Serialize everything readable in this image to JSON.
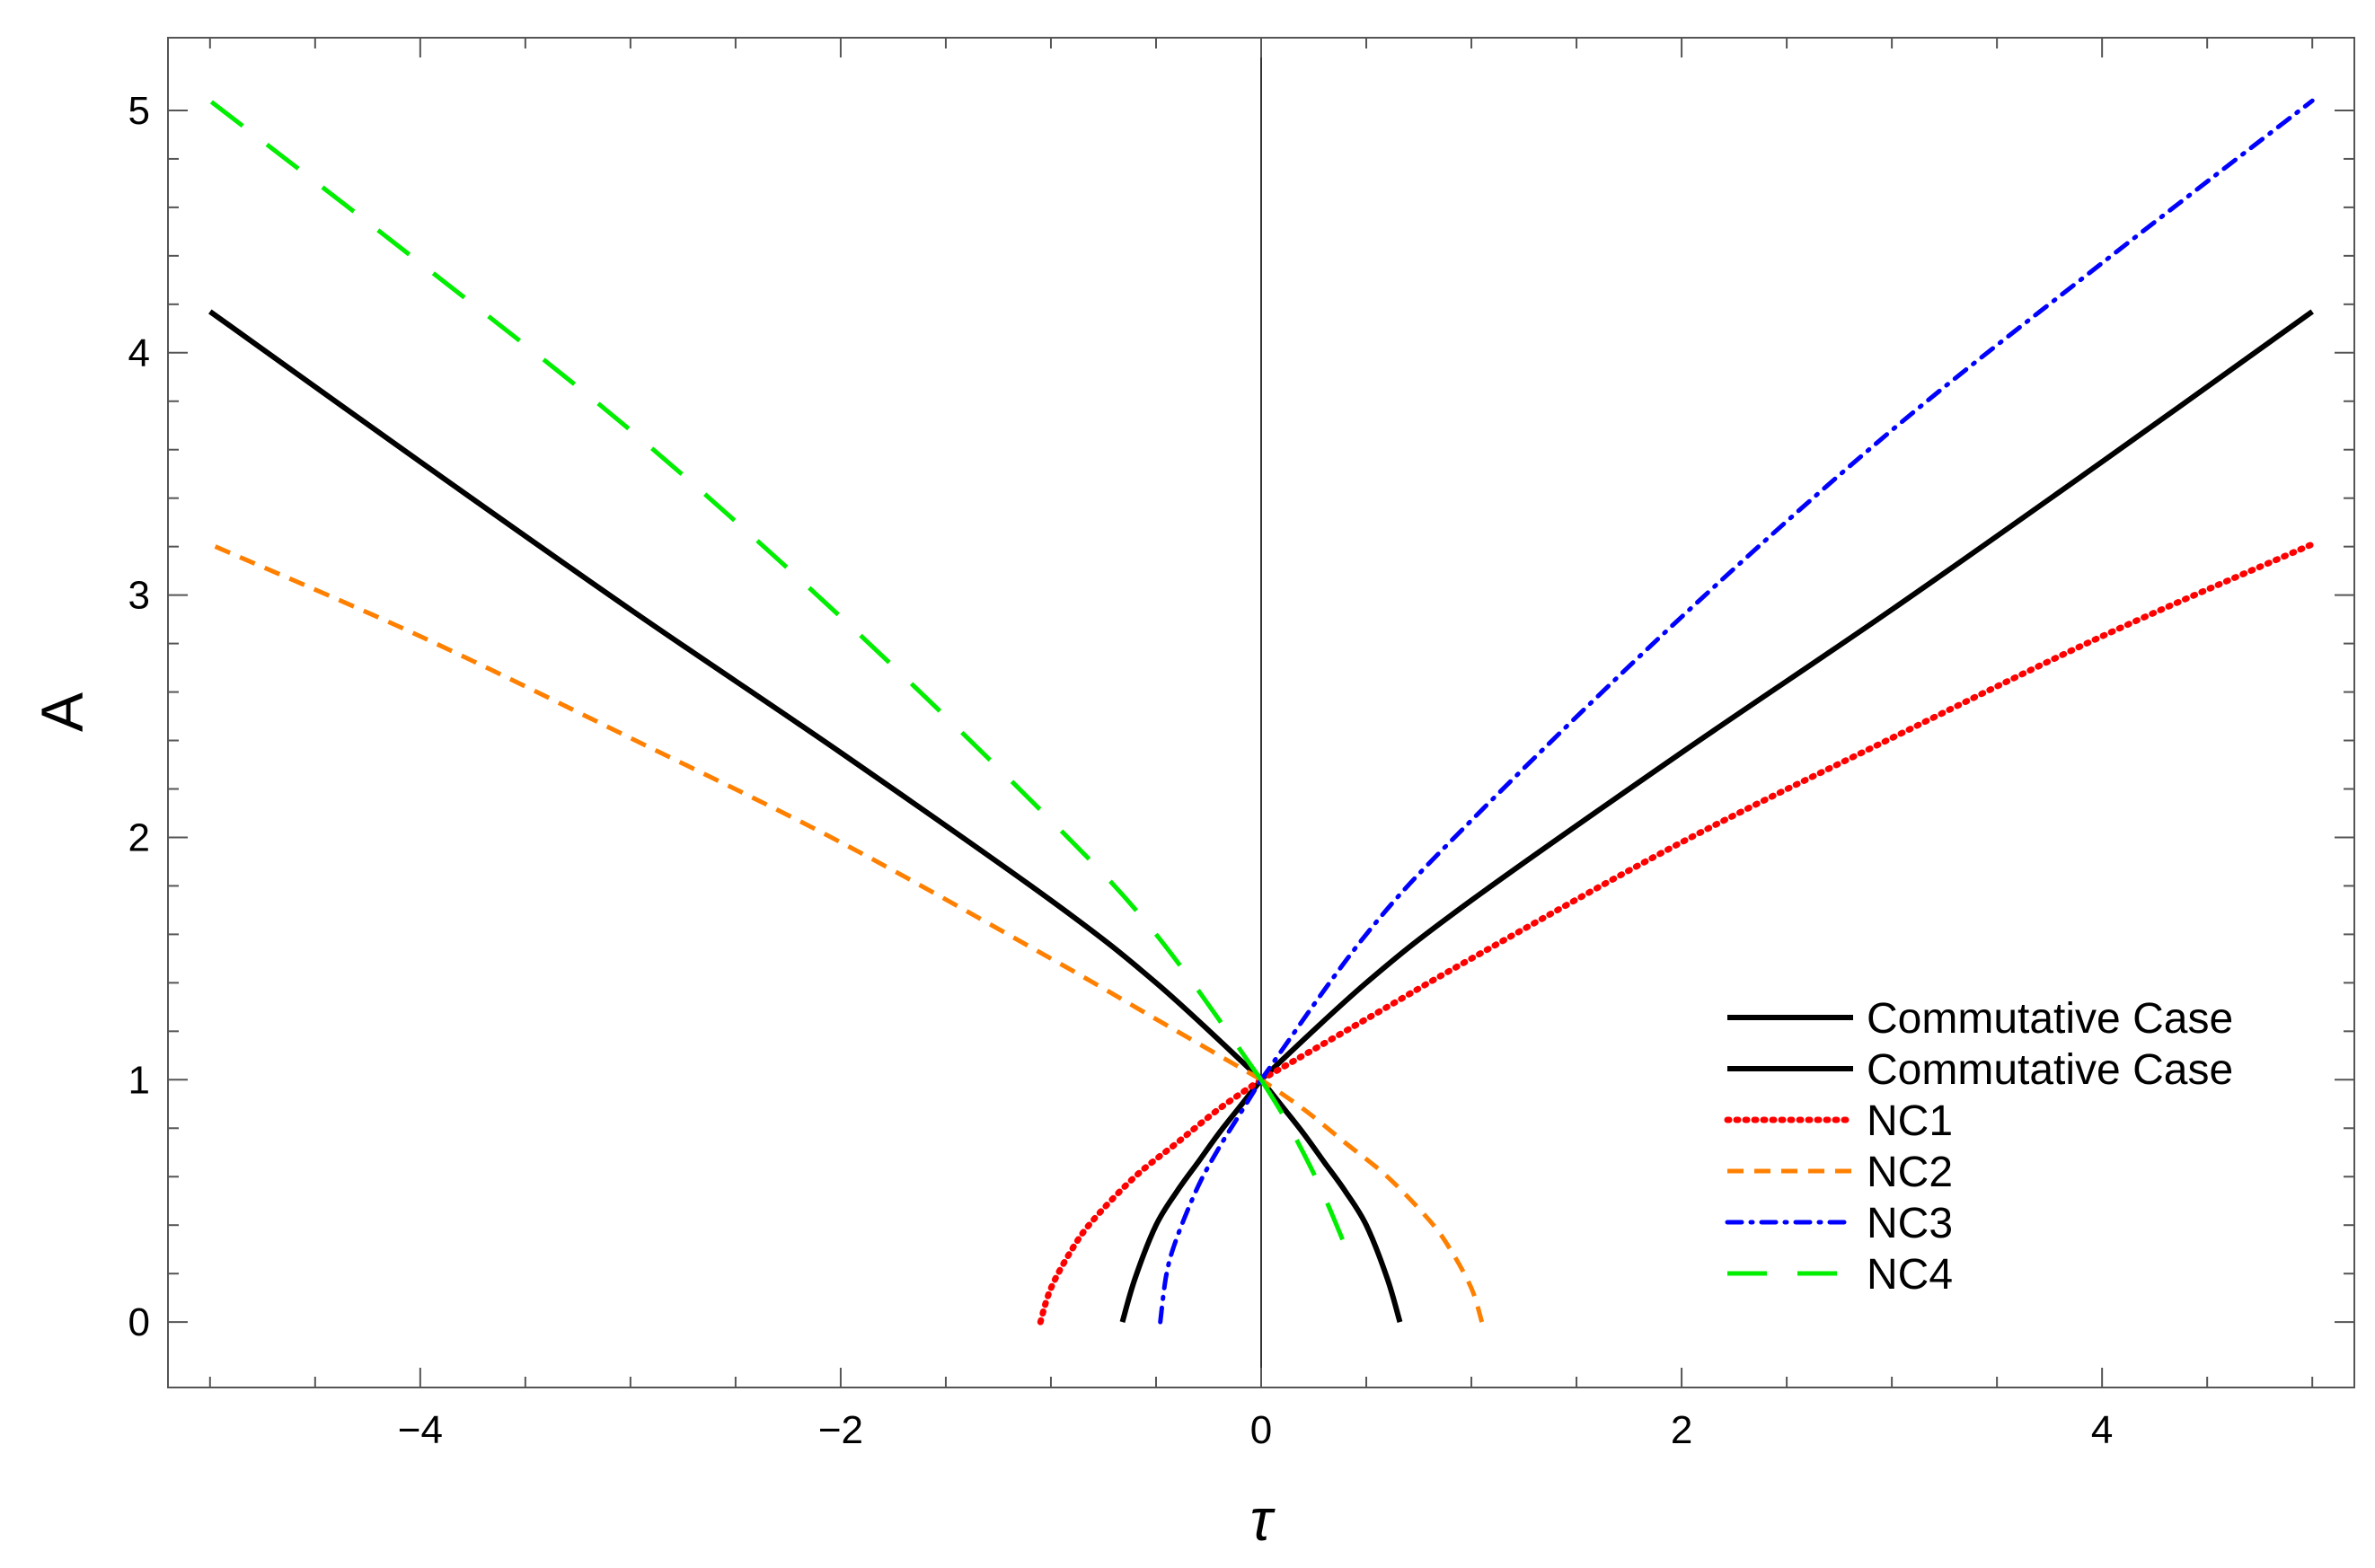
{
  "chart_data": {
    "type": "line",
    "title": "",
    "xlabel": "τ",
    "ylabel": "A",
    "xlim": [
      -5.2,
      5.2
    ],
    "ylim": [
      -0.27,
      5.3
    ],
    "grid": false,
    "legend_position": "bottom-right",
    "x_ticks": [
      -4,
      -2,
      0,
      2,
      4
    ],
    "x_tick_labels": [
      "−4",
      "−2",
      "0",
      "2",
      "4"
    ],
    "y_ticks": [
      0,
      1,
      2,
      3,
      4,
      5
    ],
    "y_tick_labels": [
      "0",
      "1",
      "2",
      "3",
      "4",
      "5"
    ],
    "series": [
      {
        "name": "Commutative Case",
        "color": "#000000",
        "dash": "solid",
        "points": [
          [
            0,
            1
          ],
          [
            0.5,
            1.4
          ],
          [
            1,
            1.74
          ],
          [
            2,
            2.35
          ],
          [
            3,
            2.94
          ],
          [
            4,
            3.55
          ],
          [
            5,
            4.17
          ]
        ]
      },
      {
        "name": "Commutative Case",
        "color": "#000000",
        "dash": "solid",
        "points": [
          [
            0,
            1
          ],
          [
            -0.5,
            1.4
          ],
          [
            -1,
            1.74
          ],
          [
            -2,
            2.35
          ],
          [
            -3,
            2.94
          ],
          [
            -4,
            3.55
          ],
          [
            -5,
            4.17
          ]
        ]
      },
      {
        "name": "",
        "color": "#000000",
        "dash": "solid",
        "points": [
          [
            -0.66,
            0
          ],
          [
            -0.6,
            0.18
          ],
          [
            -0.5,
            0.4
          ],
          [
            -0.4,
            0.54
          ],
          [
            -0.3,
            0.66
          ],
          [
            -0.2,
            0.78
          ],
          [
            -0.1,
            0.89
          ],
          [
            0,
            1
          ]
        ]
      },
      {
        "name": "",
        "color": "#000000",
        "dash": "solid",
        "points": [
          [
            0.66,
            0
          ],
          [
            0.6,
            0.18
          ],
          [
            0.5,
            0.4
          ],
          [
            0.4,
            0.54
          ],
          [
            0.3,
            0.66
          ],
          [
            0.2,
            0.78
          ],
          [
            0.1,
            0.89
          ],
          [
            0,
            1
          ]
        ]
      },
      {
        "name": "NC1",
        "color": "#ff0000",
        "dash": "dotted",
        "points": [
          [
            0,
            1
          ],
          [
            0.5,
            1.25
          ],
          [
            1,
            1.5
          ],
          [
            2,
            1.98
          ],
          [
            3,
            2.41
          ],
          [
            4,
            2.83
          ],
          [
            5,
            3.21
          ]
        ]
      },
      {
        "name": "",
        "color": "#ff0000",
        "dash": "dotted",
        "points": [
          [
            -1.05,
            0
          ],
          [
            -1.0,
            0.14
          ],
          [
            -0.9,
            0.3
          ],
          [
            -0.8,
            0.42
          ],
          [
            -0.6,
            0.6
          ],
          [
            -0.4,
            0.74
          ],
          [
            -0.2,
            0.88
          ],
          [
            0,
            1
          ]
        ]
      },
      {
        "name": "NC2",
        "color": "#ff8000",
        "dash": "dashed",
        "points": [
          [
            0,
            1
          ],
          [
            -0.5,
            1.25
          ],
          [
            -1,
            1.5
          ],
          [
            -2,
            1.98
          ],
          [
            -3,
            2.41
          ],
          [
            -4,
            2.83
          ],
          [
            -5,
            3.21
          ]
        ]
      },
      {
        "name": "",
        "color": "#ff8000",
        "dash": "dashed",
        "points": [
          [
            1.05,
            0
          ],
          [
            1.0,
            0.14
          ],
          [
            0.9,
            0.3
          ],
          [
            0.8,
            0.42
          ],
          [
            0.6,
            0.6
          ],
          [
            0.4,
            0.74
          ],
          [
            0.2,
            0.88
          ],
          [
            0,
            1
          ]
        ]
      },
      {
        "name": "NC3",
        "color": "#0000ff",
        "dash": "dashdot",
        "points": [
          [
            0,
            1
          ],
          [
            0.5,
            1.6
          ],
          [
            1,
            2.07
          ],
          [
            2,
            2.91
          ],
          [
            3,
            3.68
          ],
          [
            4,
            4.37
          ],
          [
            5,
            5.04
          ]
        ]
      },
      {
        "name": "",
        "color": "#0000ff",
        "dash": "dashdot",
        "points": [
          [
            -0.48,
            0
          ],
          [
            -0.45,
            0.2
          ],
          [
            -0.4,
            0.35
          ],
          [
            -0.3,
            0.56
          ],
          [
            -0.2,
            0.72
          ],
          [
            -0.1,
            0.86
          ],
          [
            0,
            1
          ]
        ]
      },
      {
        "name": "NC4",
        "color": "#00ee00",
        "dash": "longdash",
        "points": [
          [
            0,
            1
          ],
          [
            -0.5,
            1.6
          ],
          [
            -1,
            2.07
          ],
          [
            -2,
            2.91
          ],
          [
            -3,
            3.68
          ],
          [
            -4,
            4.37
          ],
          [
            -5,
            5.04
          ]
        ]
      },
      {
        "name": "",
        "color": "#00ee00",
        "dash": "longdash",
        "points": [
          [
            0,
            1
          ],
          [
            0.1,
            0.86
          ],
          [
            0.2,
            0.7
          ],
          [
            0.3,
            0.52
          ],
          [
            0.43,
            0.25
          ]
        ]
      }
    ],
    "legend": [
      {
        "label": "Commutative Case",
        "color": "#000000",
        "dash": "solid"
      },
      {
        "label": "Commutative Case",
        "color": "#000000",
        "dash": "solid"
      },
      {
        "label": "NC1",
        "color": "#ff0000",
        "dash": "dotted"
      },
      {
        "label": "NC2",
        "color": "#ff8000",
        "dash": "dashed"
      },
      {
        "label": "NC3",
        "color": "#0000ff",
        "dash": "dashdot"
      },
      {
        "label": "NC4",
        "color": "#00ee00",
        "dash": "longdash"
      }
    ]
  }
}
